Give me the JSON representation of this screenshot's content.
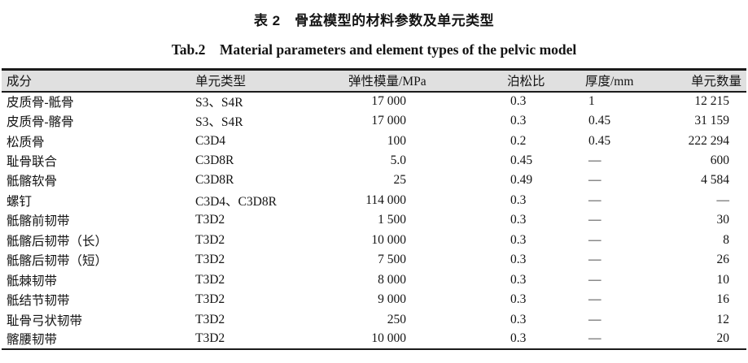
{
  "title_cn": "表 2　骨盆模型的材料参数及单元类型",
  "title_en": "Tab.2　Material parameters and element types of the pelvic model",
  "colors": {
    "header_bg": "#e0e0e0",
    "border": "#1b1b1b",
    "text": "#141414",
    "page_bg": "#ffffff"
  },
  "table": {
    "columns": [
      "成分",
      "单元类型",
      "弹性模量/MPa",
      "泊松比",
      "厚度/mm",
      "单元数量"
    ],
    "rows": [
      [
        "皮质骨-骶骨",
        "S3、S4R",
        "17 000",
        "0.3",
        "1",
        "12 215"
      ],
      [
        "皮质骨-髂骨",
        "S3、S4R",
        "17 000",
        "0.3",
        "0.45",
        "31 159"
      ],
      [
        "松质骨",
        "C3D4",
        "100",
        "0.2",
        "0.45",
        "222 294"
      ],
      [
        "耻骨联合",
        "C3D8R",
        "5.0",
        "0.45",
        "—",
        "600"
      ],
      [
        "骶髂软骨",
        "C3D8R",
        "25",
        "0.49",
        "—",
        "4 584"
      ],
      [
        "螺钉",
        "C3D4、C3D8R",
        "114 000",
        "0.3",
        "—",
        "—"
      ],
      [
        "骶髂前韧带",
        "T3D2",
        "1 500",
        "0.3",
        "—",
        "30"
      ],
      [
        "骶髂后韧带（长）",
        "T3D2",
        "10 000",
        "0.3",
        "—",
        "8"
      ],
      [
        "骶髂后韧带（短）",
        "T3D2",
        "7 500",
        "0.3",
        "—",
        "26"
      ],
      [
        "骶棘韧带",
        "T3D2",
        "8 000",
        "0.3",
        "—",
        "10"
      ],
      [
        "骶结节韧带",
        "T3D2",
        "9 000",
        "0.3",
        "—",
        "16"
      ],
      [
        "耻骨弓状韧带",
        "T3D2",
        "250",
        "0.3",
        "—",
        "12"
      ],
      [
        "髂腰韧带",
        "T3D2",
        "10 000",
        "0.3",
        "—",
        "20"
      ]
    ]
  }
}
